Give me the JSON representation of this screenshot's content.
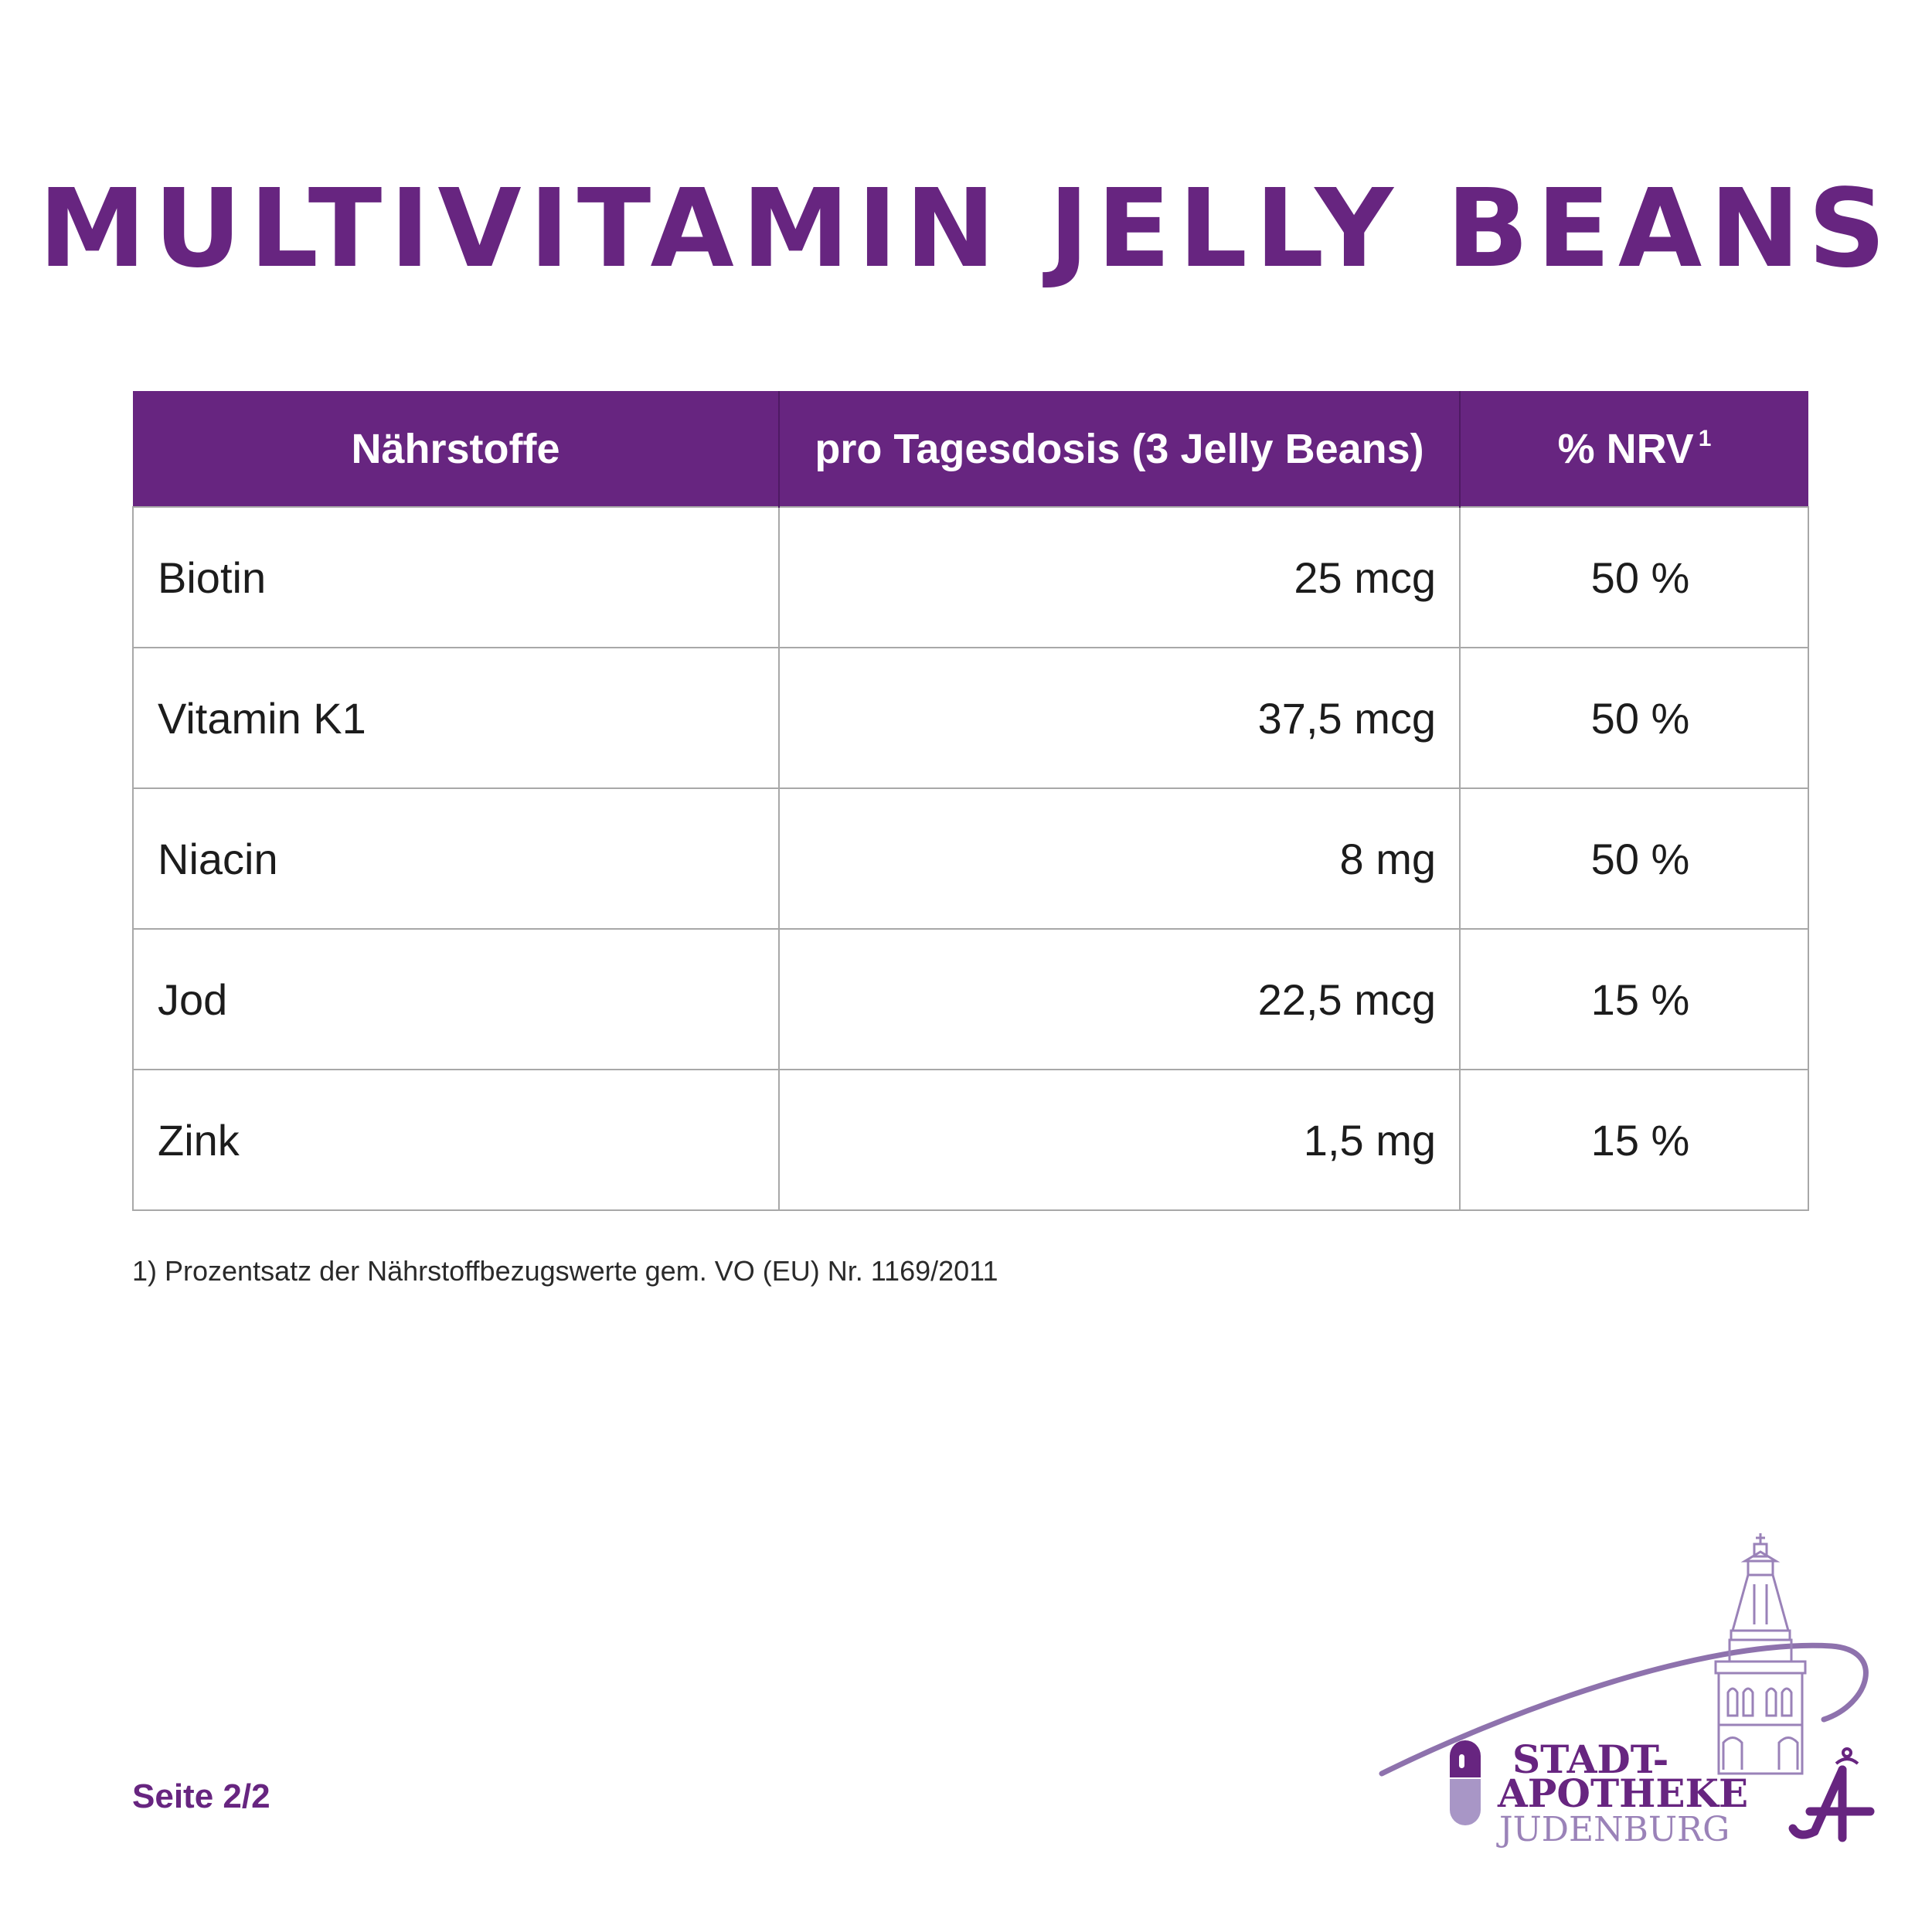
{
  "title": "MULTIVITAMIN JELLY BEANS",
  "table": {
    "headers": {
      "nutrient": "Nährstoffe",
      "amount": "pro Tagesdosis (3 Jelly Beans)",
      "nrv": "% NRV",
      "nrv_footnote_ref": "1"
    },
    "rows": [
      {
        "nutrient": "Biotin",
        "amount": "25 mcg",
        "nrv": "50 %"
      },
      {
        "nutrient": "Vitamin K1",
        "amount": "37,5 mcg",
        "nrv": "50 %"
      },
      {
        "nutrient": "Niacin",
        "amount": "8 mg",
        "nrv": "50 %"
      },
      {
        "nutrient": "Jod",
        "amount": "22,5 mcg",
        "nrv": "15 %"
      },
      {
        "nutrient": "Zink",
        "amount": "1,5 mg",
        "nrv": "15 %"
      }
    ]
  },
  "footnote": "1) Prozentsatz der Nährstoffbezugswerte gem. VO (EU) Nr. 1169/2011",
  "page_label": "Seite 2/2",
  "logo": {
    "line1": "STADT-",
    "line2": "APOTHEKE",
    "line3": "JUDENBURG"
  },
  "colors": {
    "brand_purple": "#672580",
    "logo_light_purple": "#9a82b8"
  }
}
